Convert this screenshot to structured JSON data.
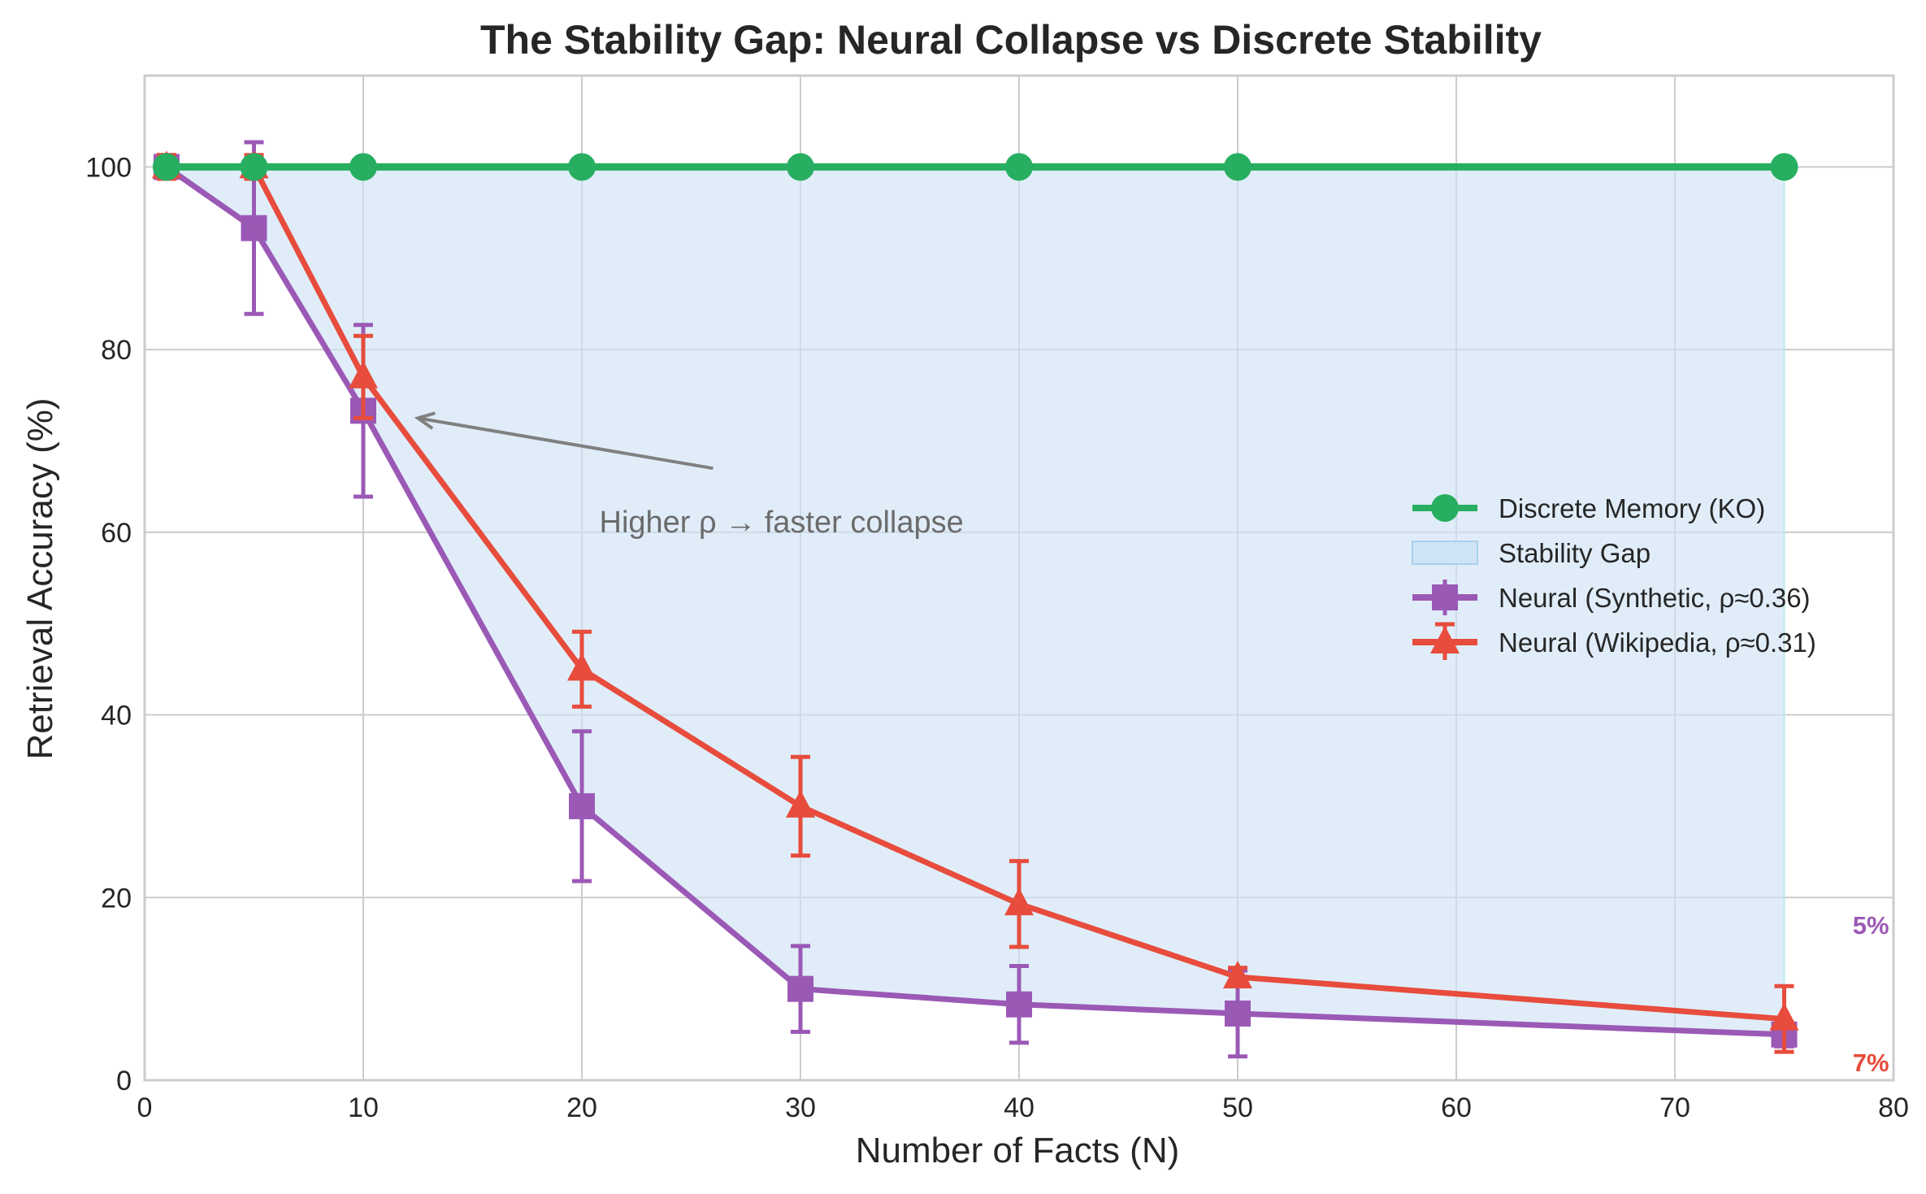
{
  "chart_data": {
    "type": "line",
    "title": "The Stability Gap: Neural Collapse vs Discrete Stability",
    "xlabel": "Number of Facts (N)",
    "ylabel": "Retrieval Accuracy (%)",
    "xlim": [
      0,
      80
    ],
    "ylim": [
      0,
      110
    ],
    "xticks": [
      0,
      10,
      20,
      30,
      40,
      50,
      60,
      70,
      80
    ],
    "yticks": [
      0,
      20,
      40,
      60,
      80,
      100
    ],
    "grid": true,
    "legend_position": "center-right",
    "series": [
      {
        "name": "Discrete Memory (KO)",
        "color": "#27ae60",
        "marker": "circle",
        "x": [
          1,
          5,
          10,
          20,
          30,
          40,
          50,
          75
        ],
        "values": [
          100,
          100,
          100,
          100,
          100,
          100,
          100,
          100
        ]
      },
      {
        "name": "Neural (Synthetic, ρ≈0.36)",
        "color": "#9b59b6",
        "marker": "square",
        "x": [
          1,
          5,
          10,
          20,
          30,
          40,
          50,
          75
        ],
        "values": [
          100,
          93.3,
          73.3,
          30,
          10,
          8.3,
          7.3,
          5
        ],
        "errors": [
          1.3,
          9.4,
          9.4,
          8.2,
          4.7,
          4.2,
          4.7,
          1.3
        ]
      },
      {
        "name": "Neural (Wikipedia, ρ≈0.31)",
        "color": "#e74c3c",
        "marker": "triangle",
        "x": [
          1,
          5,
          10,
          20,
          30,
          40,
          50,
          75
        ],
        "values": [
          100,
          100,
          77,
          45,
          30,
          19.3,
          11.3,
          6.7
        ],
        "errors": [
          1.3,
          1.3,
          4.5,
          4.1,
          5.4,
          4.7,
          1.0,
          3.6
        ]
      }
    ],
    "fill": {
      "name": "Stability Gap",
      "color": "#cfe4f6",
      "between": [
        "Discrete Memory (KO)",
        "Neural (Synthetic, ρ≈0.36)"
      ]
    },
    "annotation": {
      "text": "Higher ρ → faster collapse",
      "text_x": 20.8,
      "text_y": 60,
      "arrow_from": [
        26,
        67
      ],
      "arrow_to": [
        12.5,
        72.5
      ]
    },
    "end_labels": [
      {
        "text": "5%",
        "color": "#9b59b6",
        "x": 79.8,
        "y": 16
      },
      {
        "text": "7%",
        "color": "#e74c3c",
        "x": 79.8,
        "y": 1
      }
    ]
  }
}
